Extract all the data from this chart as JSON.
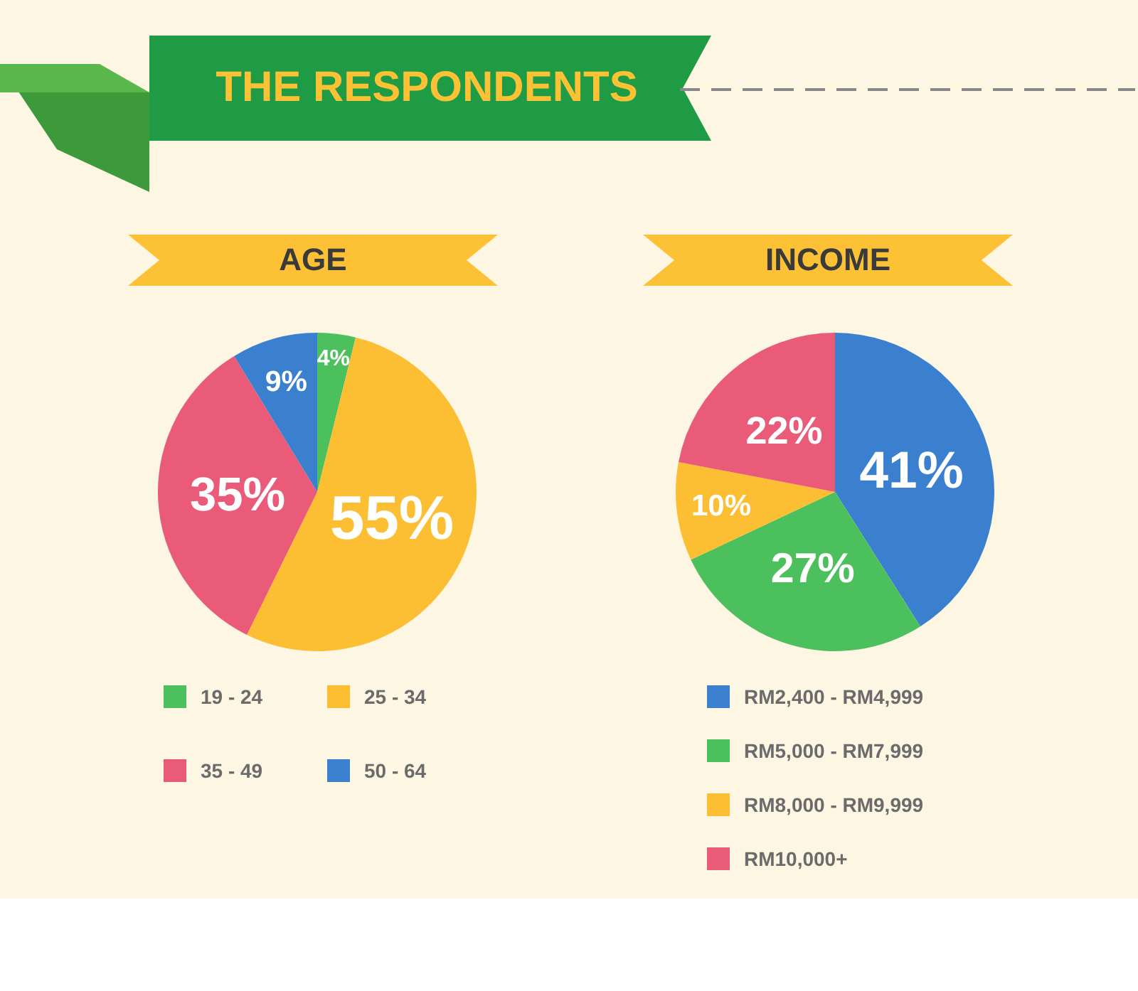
{
  "chart_data": [
    {
      "type": "other",
      "title": "THE RESPONDENTS"
    },
    {
      "type": "pie",
      "title": "AGE",
      "categories": [
        "19 - 24",
        "25 - 34",
        "35 - 49",
        "50 - 64"
      ],
      "values": [
        4,
        55,
        35,
        9
      ],
      "value_labels": [
        "4%",
        "55%",
        "35%",
        "9%"
      ],
      "colors": [
        "#4cc05c",
        "#fcbf33",
        "#e95b79",
        "#3a80cf"
      ],
      "legend": "bottom"
    },
    {
      "type": "pie",
      "title": "INCOME",
      "categories": [
        "RM2,400 - RM4,999",
        "RM5,000 - RM7,999",
        "RM8,000 - RM9,999",
        "RM10,000+"
      ],
      "values": [
        41,
        27,
        10,
        22
      ],
      "value_labels": [
        "41%",
        "27%",
        "10%",
        "22%"
      ],
      "colors": [
        "#3a80cf",
        "#4cc05c",
        "#fcbf33",
        "#e95b79"
      ],
      "legend": "bottom"
    }
  ]
}
